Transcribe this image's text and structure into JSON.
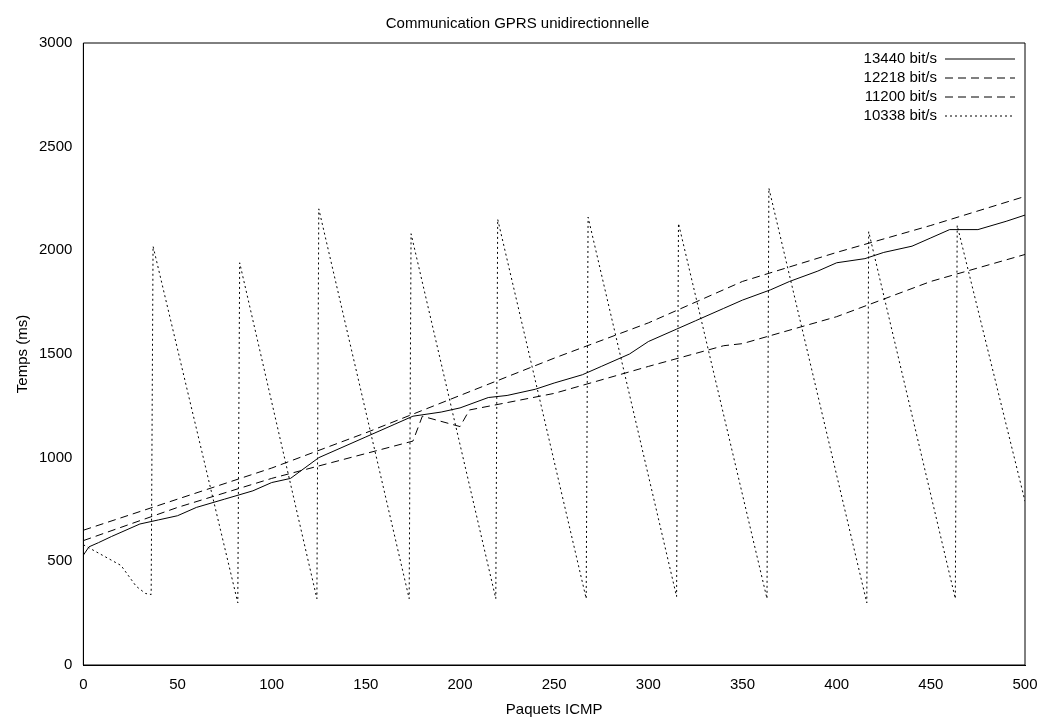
{
  "chart_data": {
    "type": "line",
    "title": "Communication GPRS unidirectionnelle",
    "xlabel": "Paquets ICMP",
    "ylabel": "Temps (ms)",
    "xlim": [
      0,
      500
    ],
    "xticks": [
      0,
      50,
      100,
      150,
      200,
      250,
      300,
      350,
      400,
      450,
      500
    ],
    "ylim": [
      0,
      3000
    ],
    "yticks": [
      0,
      500,
      1000,
      1500,
      2000,
      2500,
      3000
    ],
    "grid": false,
    "legend": "top right",
    "marker": "none",
    "series": [
      {
        "name": "13440 bit/s",
        "color": "#000000",
        "line_style": "solid",
        "x": [
          0,
          3,
          8,
          15,
          20,
          30,
          40,
          50,
          60,
          75,
          90,
          100,
          110,
          125,
          140,
          150,
          165,
          175,
          190,
          200,
          215,
          225,
          240,
          250,
          265,
          275,
          290,
          300,
          315,
          325,
          340,
          350,
          365,
          375,
          390,
          400,
          415,
          425,
          440,
          450,
          460,
          475,
          490,
          500
        ],
        "values": [
          530,
          570,
          590,
          620,
          640,
          680,
          700,
          720,
          760,
          800,
          840,
          880,
          900,
          1000,
          1060,
          1100,
          1160,
          1200,
          1220,
          1240,
          1290,
          1300,
          1330,
          1360,
          1400,
          1440,
          1500,
          1560,
          1620,
          1660,
          1720,
          1760,
          1810,
          1850,
          1900,
          1940,
          1960,
          1990,
          2020,
          2060,
          2100,
          2100,
          2140,
          2170
        ]
      },
      {
        "name": "12218 bit/s",
        "color": "#000000",
        "line_style": "dashed",
        "x": [
          0,
          50,
          100,
          150,
          200,
          250,
          300,
          350,
          400,
          450,
          500
        ],
        "values": [
          650,
          800,
          950,
          1120,
          1300,
          1480,
          1650,
          1850,
          1990,
          2120,
          2260
        ]
      },
      {
        "name": "11200 bit/s",
        "color": "#000000",
        "line_style": "dashed",
        "x": [
          0,
          50,
          100,
          150,
          175,
          180,
          200,
          205,
          250,
          300,
          340,
          350,
          400,
          450,
          500
        ],
        "values": [
          600,
          760,
          900,
          1020,
          1080,
          1200,
          1150,
          1230,
          1310,
          1440,
          1540,
          1550,
          1680,
          1850,
          1980
        ]
      },
      {
        "name": "10338 bit/s",
        "color": "#000000",
        "line_style": "dotted",
        "x": [
          0,
          10,
          20,
          28,
          33,
          36,
          37,
          82,
          83,
          124,
          125,
          173,
          174,
          219,
          220,
          267,
          268,
          315,
          316,
          363,
          364,
          416,
          417,
          463,
          464,
          500
        ],
        "values": [
          580,
          530,
          480,
          380,
          345,
          340,
          2020,
          300,
          1940,
          320,
          2200,
          320,
          2080,
          320,
          2150,
          320,
          2160,
          330,
          2130,
          320,
          2300,
          300,
          2090,
          320,
          2120,
          790
        ]
      }
    ]
  }
}
